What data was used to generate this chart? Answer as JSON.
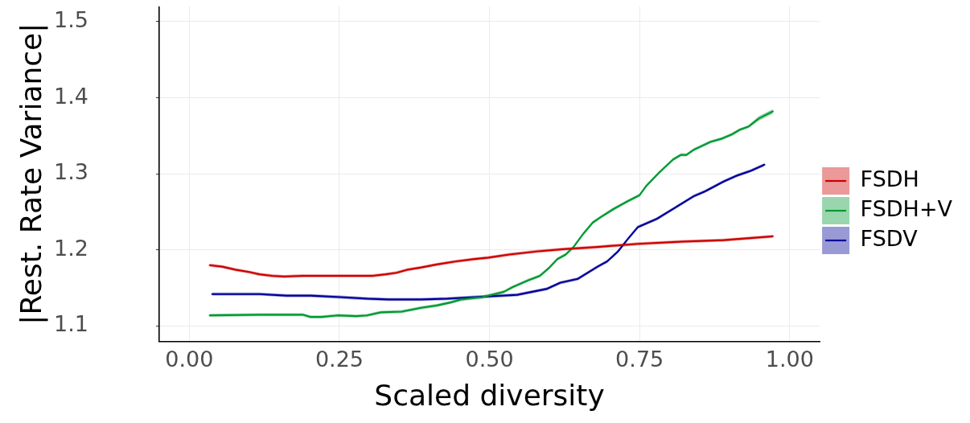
{
  "chart_data": {
    "type": "line",
    "xlabel": "Scaled diversity",
    "ylabel": "|Rest. Rate Variance|",
    "xlim": [
      -0.05,
      1.05
    ],
    "xticks": [
      {
        "value": 0,
        "label": "0.00"
      },
      {
        "value": 0.25,
        "label": "0.25"
      },
      {
        "value": 0.5,
        "label": "0.50"
      },
      {
        "value": 0.75,
        "label": "0.75"
      },
      {
        "value": 1,
        "label": "1.00"
      }
    ],
    "ylim": [
      1.08,
      1.52
    ],
    "yticks": [
      1.1,
      1.2,
      1.3,
      1.4,
      1.5
    ],
    "grid": true,
    "legend": "right",
    "marker": "none",
    "series": [
      {
        "name": "FSDH",
        "color": "#cc0000",
        "x": [
          0.034,
          0.055,
          0.077,
          0.1,
          0.117,
          0.138,
          0.158,
          0.189,
          0.22,
          0.252,
          0.278,
          0.305,
          0.327,
          0.345,
          0.363,
          0.386,
          0.412,
          0.444,
          0.475,
          0.498,
          0.533,
          0.578,
          0.622,
          0.68,
          0.747,
          0.823,
          0.89,
          0.972
        ],
        "values": [
          1.18,
          1.178,
          1.174,
          1.171,
          1.168,
          1.166,
          1.165,
          1.166,
          1.166,
          1.166,
          1.166,
          1.166,
          1.168,
          1.17,
          1.174,
          1.177,
          1.181,
          1.185,
          1.188,
          1.19,
          1.194,
          1.198,
          1.201,
          1.204,
          1.208,
          1.211,
          1.213,
          1.218
        ],
        "lower": [
          1.178,
          1.176,
          1.172,
          1.169,
          1.166,
          1.164,
          1.163,
          1.164,
          1.164,
          1.164,
          1.164,
          1.164,
          1.166,
          1.168,
          1.172,
          1.175,
          1.179,
          1.183,
          1.186,
          1.188,
          1.192,
          1.196,
          1.199,
          1.202,
          1.206,
          1.209,
          1.211,
          1.216
        ],
        "upper": [
          1.182,
          1.18,
          1.176,
          1.173,
          1.17,
          1.168,
          1.167,
          1.168,
          1.168,
          1.168,
          1.168,
          1.168,
          1.17,
          1.172,
          1.176,
          1.179,
          1.183,
          1.187,
          1.19,
          1.192,
          1.196,
          1.2,
          1.203,
          1.206,
          1.21,
          1.213,
          1.215,
          1.22
        ]
      },
      {
        "name": "FSDH+V",
        "color": "#009933",
        "x": [
          0.034,
          0.117,
          0.189,
          0.202,
          0.22,
          0.247,
          0.278,
          0.296,
          0.319,
          0.354,
          0.386,
          0.412,
          0.435,
          0.453,
          0.488,
          0.524,
          0.538,
          0.564,
          0.584,
          0.6,
          0.613,
          0.627,
          0.64,
          0.656,
          0.672,
          0.685,
          0.707,
          0.73,
          0.75,
          0.761,
          0.783,
          0.806,
          0.819,
          0.828,
          0.841,
          0.868,
          0.886,
          0.904,
          0.917,
          0.931,
          0.949,
          0.972
        ],
        "values": [
          1.114,
          1.115,
          1.115,
          1.112,
          1.112,
          1.114,
          1.113,
          1.114,
          1.118,
          1.119,
          1.124,
          1.127,
          1.131,
          1.135,
          1.138,
          1.145,
          1.151,
          1.16,
          1.166,
          1.177,
          1.188,
          1.194,
          1.204,
          1.221,
          1.236,
          1.243,
          1.254,
          1.264,
          1.272,
          1.284,
          1.302,
          1.319,
          1.325,
          1.325,
          1.332,
          1.342,
          1.346,
          1.352,
          1.358,
          1.362,
          1.373,
          1.382
        ],
        "lower": [
          1.112,
          1.113,
          1.113,
          1.11,
          1.11,
          1.112,
          1.111,
          1.112,
          1.116,
          1.117,
          1.122,
          1.125,
          1.129,
          1.133,
          1.136,
          1.143,
          1.149,
          1.158,
          1.164,
          1.175,
          1.186,
          1.192,
          1.202,
          1.219,
          1.234,
          1.241,
          1.252,
          1.262,
          1.27,
          1.282,
          1.3,
          1.317,
          1.323,
          1.323,
          1.33,
          1.34,
          1.344,
          1.35,
          1.356,
          1.36,
          1.37,
          1.379
        ],
        "upper": [
          1.116,
          1.117,
          1.117,
          1.114,
          1.114,
          1.116,
          1.115,
          1.116,
          1.12,
          1.121,
          1.126,
          1.129,
          1.133,
          1.137,
          1.14,
          1.147,
          1.153,
          1.162,
          1.168,
          1.179,
          1.19,
          1.196,
          1.206,
          1.223,
          1.238,
          1.245,
          1.256,
          1.266,
          1.274,
          1.286,
          1.304,
          1.321,
          1.327,
          1.327,
          1.334,
          1.344,
          1.348,
          1.354,
          1.36,
          1.364,
          1.376,
          1.385
        ]
      },
      {
        "name": "FSDV",
        "color": "#000099",
        "x": [
          0.038,
          0.117,
          0.162,
          0.202,
          0.252,
          0.296,
          0.332,
          0.386,
          0.43,
          0.475,
          0.546,
          0.596,
          0.618,
          0.647,
          0.68,
          0.696,
          0.714,
          0.73,
          0.747,
          0.779,
          0.81,
          0.841,
          0.859,
          0.89,
          0.913,
          0.935,
          0.958
        ],
        "values": [
          1.142,
          1.142,
          1.14,
          1.14,
          1.138,
          1.136,
          1.135,
          1.135,
          1.136,
          1.138,
          1.141,
          1.149,
          1.157,
          1.162,
          1.178,
          1.185,
          1.198,
          1.214,
          1.23,
          1.241,
          1.256,
          1.271,
          1.277,
          1.29,
          1.298,
          1.304,
          1.312
        ],
        "lower": [
          1.14,
          1.14,
          1.138,
          1.138,
          1.136,
          1.134,
          1.133,
          1.133,
          1.134,
          1.136,
          1.139,
          1.147,
          1.155,
          1.16,
          1.176,
          1.183,
          1.196,
          1.212,
          1.228,
          1.239,
          1.254,
          1.269,
          1.275,
          1.288,
          1.296,
          1.302,
          1.31
        ],
        "upper": [
          1.144,
          1.144,
          1.142,
          1.142,
          1.14,
          1.138,
          1.137,
          1.137,
          1.138,
          1.14,
          1.143,
          1.151,
          1.159,
          1.164,
          1.18,
          1.187,
          1.2,
          1.216,
          1.232,
          1.243,
          1.258,
          1.273,
          1.279,
          1.292,
          1.3,
          1.306,
          1.314
        ]
      }
    ]
  }
}
